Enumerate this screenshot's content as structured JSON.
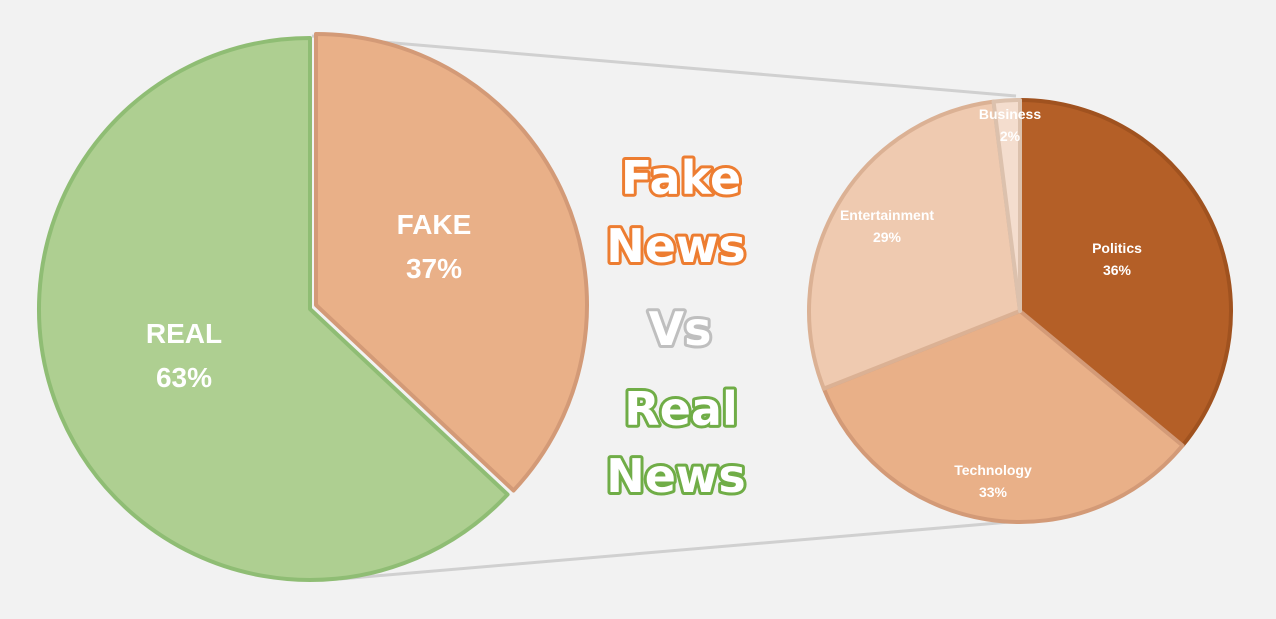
{
  "colors": {
    "background": "#f2f2f2",
    "real": "#aecf91",
    "real_border": "#8fbd74",
    "fake": "#e9b088",
    "fake_border": "#d39a77",
    "politics": "#b45f27",
    "politics_border": "#a0521f",
    "technology": "#e9b088",
    "technology_border": "#d39a77",
    "entertainment": "#efcab0",
    "entertainment_border": "#dbb194",
    "business": "#f4ddce",
    "business_border": "#dcc1ad",
    "connector": "#d0d0d0",
    "fake_text_outline": "#ed7d31",
    "vs_text_outline": "#bfbfbf",
    "real_text_outline": "#70ad47"
  },
  "headline": {
    "line1": "Fake",
    "line2": "News",
    "vs": "Vs",
    "line3": "Real",
    "line4": "News"
  },
  "chart_data": [
    {
      "type": "pie",
      "title": "",
      "slices": [
        {
          "label": "FAKE",
          "value": 37,
          "value_text": "37%"
        },
        {
          "label": "REAL",
          "value": 63,
          "value_text": "63%"
        }
      ]
    },
    {
      "type": "pie",
      "title": "",
      "slices": [
        {
          "label": "Politics",
          "value": 36,
          "value_text": "36%"
        },
        {
          "label": "Technology",
          "value": 33,
          "value_text": "33%"
        },
        {
          "label": "Entertainment",
          "value": 29,
          "value_text": "29%"
        },
        {
          "label": "Business",
          "value": 2,
          "value_text": "2%"
        }
      ]
    }
  ]
}
